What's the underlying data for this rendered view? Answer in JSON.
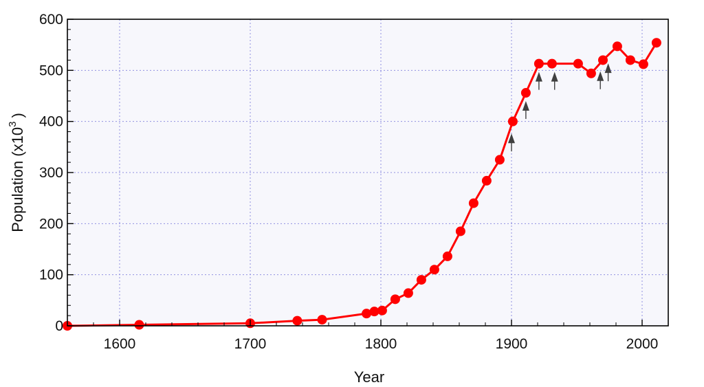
{
  "chart_data": {
    "type": "line",
    "title": "",
    "xlabel": "Year",
    "ylabel_main": "Population (x10",
    "ylabel_sup": "3",
    "ylabel_close": ")",
    "xlim": [
      1560,
      2020
    ],
    "ylim": [
      0,
      600
    ],
    "xticks": [
      1600,
      1700,
      1800,
      1900,
      2000
    ],
    "yticks": [
      0,
      100,
      200,
      300,
      400,
      500,
      600
    ],
    "grid": true,
    "legend": "none",
    "colors": {
      "line": "#ff0000",
      "marker": "#ff0000",
      "plot_bg": "#f7f7fc",
      "grid": "#8f8fe0",
      "arrow": "#404040"
    },
    "series": [
      {
        "x": [
          1560,
          1615,
          1700,
          1736,
          1755,
          1789,
          1795,
          1801,
          1811,
          1821,
          1831,
          1841,
          1851,
          1861,
          1871,
          1881,
          1891,
          1901,
          1911,
          1921,
          1931,
          1951,
          1961,
          1970,
          1981,
          1991,
          2001,
          2011
        ],
        "y": [
          0,
          2,
          5,
          10,
          12,
          24,
          28,
          30,
          52,
          64,
          90,
          110,
          136,
          185,
          240,
          284,
          325,
          400,
          456,
          513,
          513,
          513,
          494,
          520,
          547,
          520,
          512,
          554
        ]
      }
    ],
    "annotations": {
      "arrow_years": [
        1900,
        1911,
        1921,
        1933,
        1968,
        1974
      ]
    }
  }
}
